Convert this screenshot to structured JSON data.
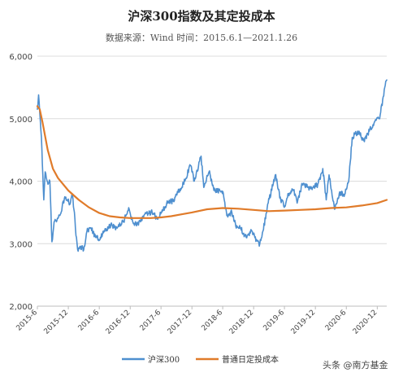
{
  "chart_data": {
    "type": "line",
    "title": "沪深300指数及其定投成本",
    "subtitle": "数据来源：Wind    时间：2015.6.1—2021.1.26",
    "ylim": [
      2000,
      6000
    ],
    "y_ticks": [
      "2,000",
      "3,000",
      "4,000",
      "5,000",
      "6,000"
    ],
    "y_tick_values": [
      2000,
      3000,
      4000,
      5000,
      6000
    ],
    "x_tick_labels": [
      "2015-6",
      "2015-12",
      "2016-6",
      "2016-12",
      "2017-6",
      "2017-12",
      "2018-6",
      "2018-12",
      "2019-6",
      "2019-12",
      "2020-6",
      "2020-12"
    ],
    "x_range": [
      "2015-06-01",
      "2021-01-26"
    ],
    "grid": true,
    "legend_position": "bottom",
    "series": [
      {
        "name": "沪深300",
        "color": "#4e8fcf",
        "points": [
          [
            "2015-06-01",
            5150
          ],
          [
            "2015-06-08",
            5380
          ],
          [
            "2015-06-15",
            5100
          ],
          [
            "2015-06-25",
            4700
          ],
          [
            "2015-07-03",
            4100
          ],
          [
            "2015-07-09",
            3700
          ],
          [
            "2015-07-17",
            4150
          ],
          [
            "2015-07-24",
            4050
          ],
          [
            "2015-08-03",
            3950
          ],
          [
            "2015-08-14",
            4000
          ],
          [
            "2015-08-26",
            3030
          ],
          [
            "2015-09-08",
            3350
          ],
          [
            "2015-09-22",
            3350
          ],
          [
            "2015-10-12",
            3450
          ],
          [
            "2015-10-26",
            3600
          ],
          [
            "2015-11-10",
            3750
          ],
          [
            "2015-11-25",
            3700
          ],
          [
            "2015-12-10",
            3630
          ],
          [
            "2015-12-23",
            3800
          ],
          [
            "2016-01-06",
            3500
          ],
          [
            "2016-01-15",
            3130
          ],
          [
            "2016-01-28",
            2880
          ],
          [
            "2016-02-10",
            2960
          ],
          [
            "2016-03-01",
            2900
          ],
          [
            "2016-03-20",
            3200
          ],
          [
            "2016-04-14",
            3250
          ],
          [
            "2016-05-10",
            3100
          ],
          [
            "2016-05-27",
            3070
          ],
          [
            "2016-06-20",
            3150
          ],
          [
            "2016-07-15",
            3230
          ],
          [
            "2016-08-15",
            3300
          ],
          [
            "2016-09-15",
            3250
          ],
          [
            "2016-10-20",
            3350
          ],
          [
            "2016-11-25",
            3550
          ],
          [
            "2016-12-20",
            3320
          ],
          [
            "2017-01-16",
            3320
          ],
          [
            "2017-02-20",
            3450
          ],
          [
            "2017-03-20",
            3480
          ],
          [
            "2017-04-10",
            3500
          ],
          [
            "2017-05-10",
            3400
          ],
          [
            "2017-06-05",
            3500
          ],
          [
            "2017-07-05",
            3650
          ],
          [
            "2017-08-10",
            3680
          ],
          [
            "2017-09-15",
            3850
          ],
          [
            "2017-10-20",
            4000
          ],
          [
            "2017-11-22",
            4250
          ],
          [
            "2017-12-15",
            4000
          ],
          [
            "2018-01-24",
            4400
          ],
          [
            "2018-02-09",
            3900
          ],
          [
            "2018-03-12",
            4150
          ],
          [
            "2018-04-10",
            3850
          ],
          [
            "2018-05-15",
            3850
          ],
          [
            "2018-06-05",
            3800
          ],
          [
            "2018-06-25",
            3450
          ],
          [
            "2018-07-25",
            3500
          ],
          [
            "2018-08-20",
            3250
          ],
          [
            "2018-09-15",
            3250
          ],
          [
            "2018-10-18",
            3100
          ],
          [
            "2018-11-20",
            3200
          ],
          [
            "2018-12-20",
            3050
          ],
          [
            "2019-01-03",
            2960
          ],
          [
            "2019-01-25",
            3200
          ],
          [
            "2019-02-25",
            3650
          ],
          [
            "2019-04-08",
            4100
          ],
          [
            "2019-05-10",
            3700
          ],
          [
            "2019-06-06",
            3600
          ],
          [
            "2019-06-25",
            3800
          ],
          [
            "2019-07-25",
            3850
          ],
          [
            "2019-08-15",
            3650
          ],
          [
            "2019-09-15",
            3950
          ],
          [
            "2019-10-15",
            3900
          ],
          [
            "2019-11-15",
            3900
          ],
          [
            "2019-12-15",
            3950
          ],
          [
            "2020-01-14",
            4200
          ],
          [
            "2020-02-03",
            3700
          ],
          [
            "2020-02-20",
            4100
          ],
          [
            "2020-03-23",
            3550
          ],
          [
            "2020-04-20",
            3800
          ],
          [
            "2020-05-25",
            3800
          ],
          [
            "2020-06-15",
            4000
          ],
          [
            "2020-07-06",
            4700
          ],
          [
            "2020-07-20",
            4750
          ],
          [
            "2020-08-15",
            4800
          ],
          [
            "2020-09-10",
            4650
          ],
          [
            "2020-10-15",
            4800
          ],
          [
            "2020-11-15",
            4950
          ],
          [
            "2020-12-15",
            5000
          ],
          [
            "2021-01-05",
            5350
          ],
          [
            "2021-01-20",
            5600
          ],
          [
            "2021-01-26",
            5620
          ]
        ]
      },
      {
        "name": "普通日定投成本",
        "color": "#e07b2a",
        "points": [
          [
            "2015-06-01",
            5200
          ],
          [
            "2015-06-15",
            5150
          ],
          [
            "2015-07-01",
            4950
          ],
          [
            "2015-08-01",
            4500
          ],
          [
            "2015-09-01",
            4200
          ],
          [
            "2015-10-01",
            4050
          ],
          [
            "2015-12-01",
            3850
          ],
          [
            "2016-02-01",
            3700
          ],
          [
            "2016-04-01",
            3580
          ],
          [
            "2016-06-01",
            3490
          ],
          [
            "2016-08-01",
            3440
          ],
          [
            "2016-10-01",
            3420
          ],
          [
            "2016-12-01",
            3410
          ],
          [
            "2017-02-01",
            3410
          ],
          [
            "2017-04-01",
            3410
          ],
          [
            "2017-06-01",
            3420
          ],
          [
            "2017-08-01",
            3440
          ],
          [
            "2017-10-01",
            3470
          ],
          [
            "2017-12-01",
            3500
          ],
          [
            "2018-03-01",
            3550
          ],
          [
            "2018-06-01",
            3570
          ],
          [
            "2018-09-01",
            3560
          ],
          [
            "2018-12-01",
            3540
          ],
          [
            "2019-03-01",
            3520
          ],
          [
            "2019-06-01",
            3530
          ],
          [
            "2019-09-01",
            3540
          ],
          [
            "2019-12-01",
            3550
          ],
          [
            "2020-03-01",
            3570
          ],
          [
            "2020-06-01",
            3580
          ],
          [
            "2020-09-01",
            3610
          ],
          [
            "2020-12-01",
            3650
          ],
          [
            "2021-01-26",
            3700
          ]
        ]
      }
    ]
  },
  "watermark": {
    "prefix": "头条 ",
    "at": "@",
    "name": "南方基金"
  }
}
